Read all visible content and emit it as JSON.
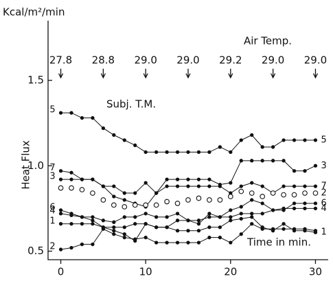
{
  "chart_data": {
    "type": "line",
    "y_unit": "Kcal/m²/min",
    "ylabel": "Heat Flux",
    "xlabel": "Time in min.",
    "annotation_title": "Air Temp.",
    "subtitle": "Subj. T.M.",
    "air_temps": {
      "x": [
        0,
        5,
        10,
        15,
        20,
        25,
        30
      ],
      "labels": [
        "27.8",
        "28.8",
        "29.0",
        "29.0",
        "29.2",
        "29.0",
        "29.0"
      ]
    },
    "xlim": [
      -1.5,
      31.5
    ],
    "ylim": [
      0.45,
      1.85
    ],
    "xticks": [
      0,
      10,
      20,
      30
    ],
    "yticks": [
      0.5,
      {
        "value": 1.0,
        "label": "1.0"
      },
      1.5
    ],
    "x": [
      0,
      1.25,
      2.5,
      3.75,
      5,
      6.25,
      7.5,
      8.75,
      10,
      11.25,
      12.5,
      13.75,
      15,
      16.25,
      17.5,
      18.75,
      20,
      21.25,
      22.5,
      23.75,
      25,
      26.25,
      27.5,
      28.75,
      30
    ],
    "series": [
      {
        "start_label": "5",
        "end_label": "5",
        "marker": "dot",
        "color": "#111",
        "values": [
          1.31,
          1.31,
          1.28,
          1.28,
          1.22,
          1.18,
          1.15,
          1.12,
          1.08,
          1.08,
          1.08,
          1.08,
          1.08,
          1.08,
          1.08,
          1.11,
          1.08,
          1.15,
          1.18,
          1.11,
          1.11,
          1.15,
          1.15,
          1.15,
          1.15
        ]
      },
      {
        "start_label": "7",
        "end_label": "3",
        "marker": "dot",
        "color": "#111",
        "values": [
          0.97,
          0.96,
          0.92,
          0.92,
          0.88,
          0.82,
          0.8,
          0.78,
          0.76,
          0.84,
          0.92,
          0.92,
          0.92,
          0.92,
          0.92,
          0.89,
          0.9,
          1.03,
          1.03,
          1.03,
          1.03,
          1.03,
          0.97,
          0.97,
          1.0
        ]
      },
      {
        "start_label": "3",
        "end_label": "7",
        "marker": "dot",
        "color": "#111",
        "values": [
          0.92,
          0.92,
          0.92,
          0.92,
          0.88,
          0.88,
          0.84,
          0.84,
          0.9,
          0.84,
          0.88,
          0.88,
          0.88,
          0.88,
          0.88,
          0.88,
          0.84,
          0.88,
          0.9,
          0.88,
          0.84,
          0.88,
          0.88,
          0.88,
          0.88
        ]
      },
      {
        "end_label": "2",
        "marker": "circle",
        "color": "#111",
        "values": [
          0.87,
          0.87,
          0.86,
          0.84,
          0.8,
          0.77,
          0.76,
          0.77,
          0.77,
          0.77,
          0.79,
          0.78,
          0.8,
          0.81,
          0.8,
          0.8,
          0.82,
          0.85,
          0.84,
          0.82,
          0.84,
          0.83,
          0.83,
          0.84,
          0.84
        ]
      },
      {
        "start_label": "6",
        "end_label": "6",
        "marker": "dot",
        "color": "#111",
        "values": [
          0.74,
          0.72,
          0.7,
          0.68,
          0.64,
          0.62,
          0.6,
          0.56,
          0.66,
          0.64,
          0.64,
          0.68,
          0.68,
          0.66,
          0.72,
          0.7,
          0.74,
          0.76,
          0.8,
          0.78,
          0.74,
          0.74,
          0.78,
          0.78,
          0.78
        ]
      },
      {
        "start_label": "4",
        "end_label": "4",
        "marker": "dot",
        "color": "#111",
        "values": [
          0.72,
          0.71,
          0.7,
          0.7,
          0.68,
          0.67,
          0.7,
          0.7,
          0.72,
          0.7,
          0.7,
          0.72,
          0.68,
          0.68,
          0.7,
          0.7,
          0.7,
          0.72,
          0.72,
          0.72,
          0.74,
          0.75,
          0.75,
          0.75,
          0.75
        ]
      },
      {
        "start_label": "1",
        "end_label": "1",
        "marker": "dot",
        "color": "#111",
        "values": [
          0.66,
          0.66,
          0.66,
          0.66,
          0.64,
          0.64,
          0.64,
          0.66,
          0.66,
          0.64,
          0.64,
          0.62,
          0.62,
          0.62,
          0.64,
          0.64,
          0.68,
          0.69,
          0.7,
          0.64,
          0.62,
          0.66,
          0.62,
          0.62,
          0.61
        ]
      },
      {
        "start_label": "2",
        "marker": "dot",
        "color": "#111",
        "values": [
          0.51,
          0.52,
          0.54,
          0.54,
          0.63,
          0.6,
          0.58,
          0.57,
          0.58,
          0.55,
          0.55,
          0.55,
          0.55,
          0.55,
          0.58,
          0.58,
          0.55,
          0.6,
          0.66,
          0.63,
          0.63,
          0.63,
          0.63,
          0.63,
          0.62
        ]
      }
    ]
  }
}
